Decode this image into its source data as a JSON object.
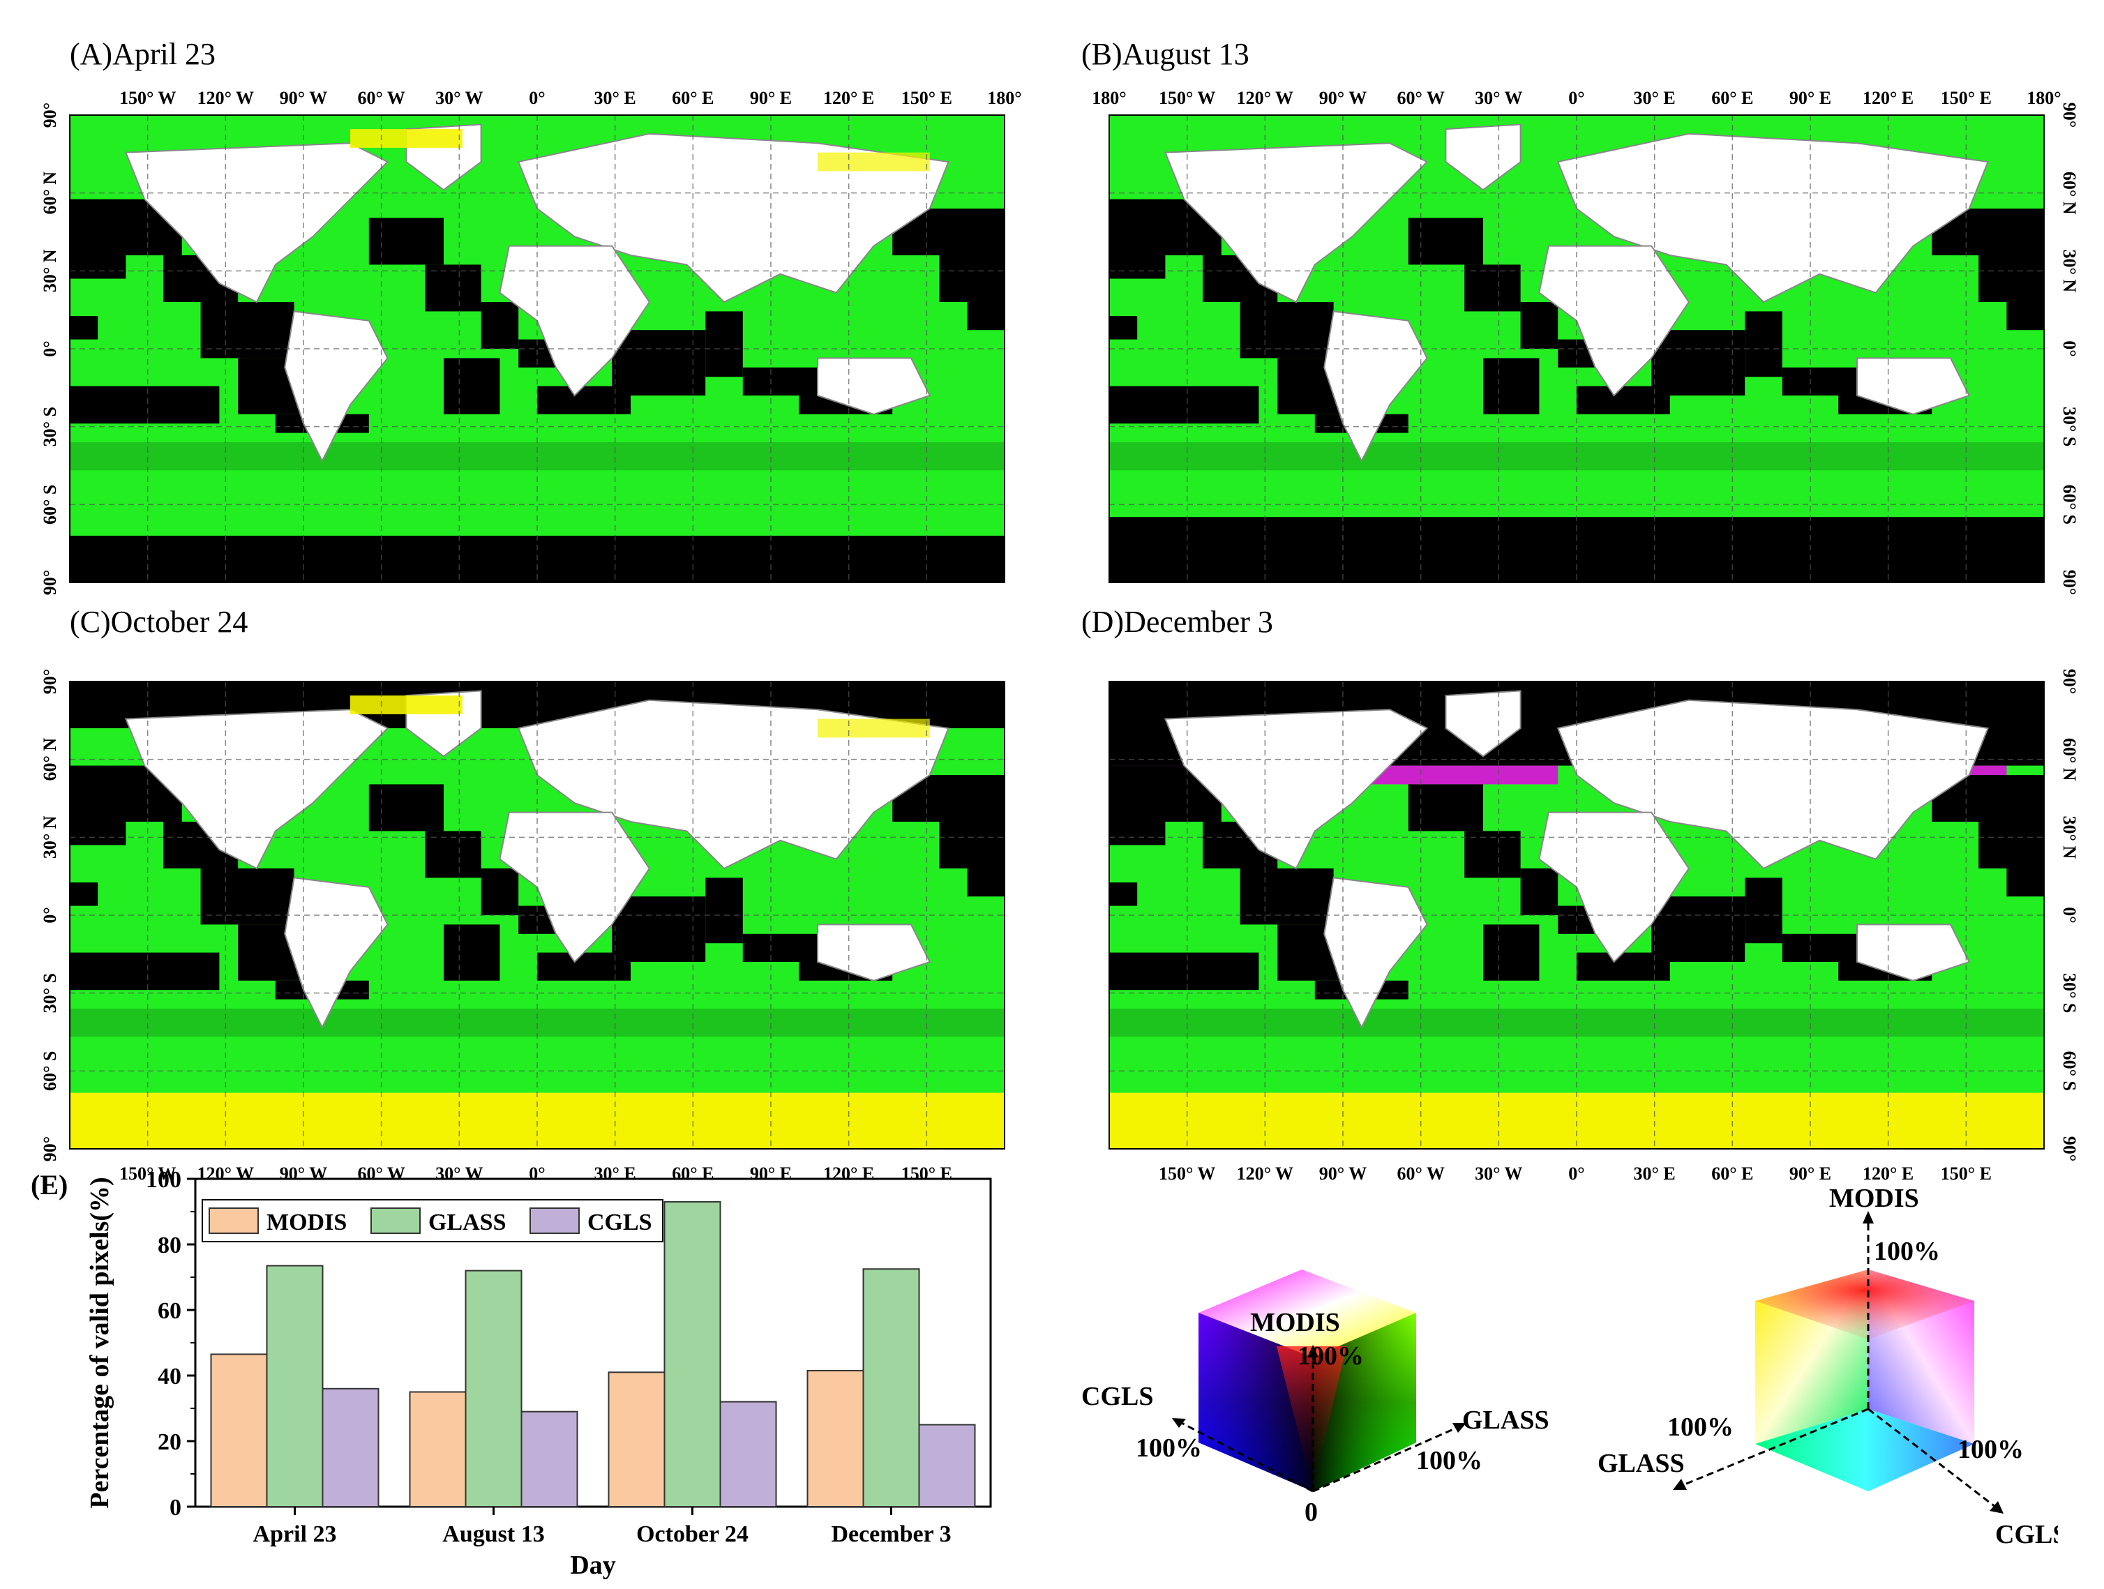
{
  "panels": [
    {
      "title": "(A)April 23"
    },
    {
      "title": "(B)August 13"
    },
    {
      "title": "(C)October 24"
    },
    {
      "title": "(D)December 3"
    }
  ],
  "map_ticks": {
    "top_a": [
      "150° W",
      "120° W",
      "90° W",
      "60° W",
      "30° W",
      "0°",
      "30° E",
      "60° E",
      "90° E",
      "120° E",
      "150° E",
      "180°"
    ],
    "top_b": [
      "180°",
      "150° W",
      "120° W",
      "90° W",
      "60° W",
      "30° W",
      "0°",
      "30° E",
      "60° E",
      "90° E",
      "120° E",
      "150° E",
      "180°"
    ],
    "bottom": [
      "150° W",
      "120° W",
      "90° W",
      "60° W",
      "30° W",
      "0°",
      "30° E",
      "60° E",
      "90° E",
      "120° E",
      "150° E"
    ],
    "lat": [
      "90°",
      "60° N",
      "30° N",
      "0°",
      "30° S",
      "60° S",
      "90°"
    ]
  },
  "colors": {
    "map_green": "#22ee22",
    "map_dark_green": "#1aa81a",
    "no_data_black": "#000000",
    "land_white": "#ffffff",
    "snow_yellow": "#f4f400",
    "winter_magenta": "#cc22cc",
    "bar_modis": "#fac9a0",
    "bar_glass": "#9fd69f",
    "bar_cgls": "#c0b0d8"
  },
  "chart_data": {
    "type": "bar",
    "panel_label": "(E)",
    "categories": [
      "April 23",
      "August 13",
      "October 24",
      "December 3"
    ],
    "series": [
      {
        "name": "MODIS",
        "values": [
          46.5,
          35,
          41,
          41.5
        ]
      },
      {
        "name": "GLASS",
        "values": [
          73.5,
          72,
          93,
          72.5
        ]
      },
      {
        "name": "CGLS",
        "values": [
          36,
          29,
          32,
          25
        ]
      }
    ],
    "xlabel": "Day",
    "ylabel": "Percentage of valid pixels(%)",
    "ylim": [
      0,
      100
    ],
    "yticks": [
      "0",
      "20",
      "40",
      "60",
      "80",
      "100"
    ],
    "legend_position": "top-left",
    "grid": false
  },
  "cube_legend": {
    "left": {
      "axis_modis": "MODIS",
      "axis_glass": "GLASS",
      "axis_cgls": "CGLS",
      "pct": "100%",
      "origin": "0"
    },
    "right": {
      "axis_modis": "MODIS",
      "axis_glass": "GLASS",
      "axis_cgls": "CGLS",
      "pct": "100%"
    }
  }
}
